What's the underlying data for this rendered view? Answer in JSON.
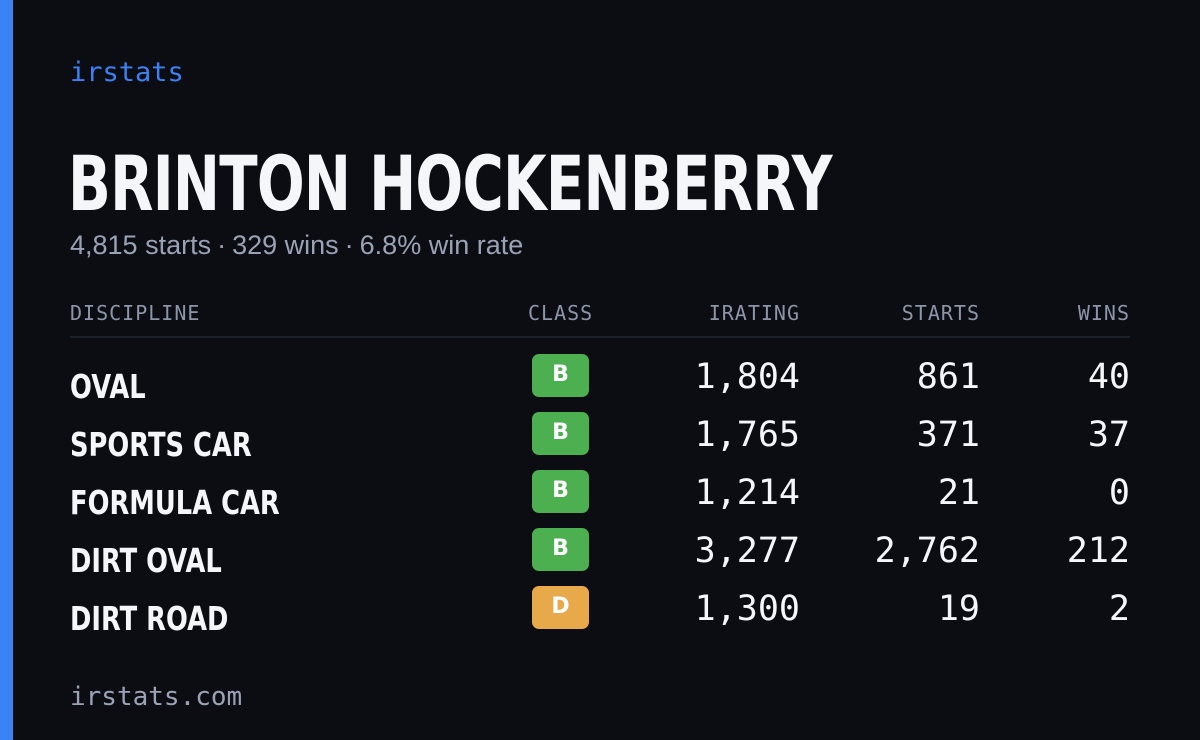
{
  "brand": "irstats",
  "driver": {
    "name": "BRINTON HOCKENBERRY",
    "starts_text": "4,815 starts",
    "wins_text": "329 wins",
    "win_rate_text": "6.8% win rate",
    "separator": "·"
  },
  "table": {
    "headers": {
      "discipline": "DISCIPLINE",
      "class": "CLASS",
      "irating": "IRATING",
      "starts": "STARTS",
      "wins": "WINS"
    },
    "rows": [
      {
        "discipline": "OVAL",
        "class": "B",
        "class_color": "#4caf50",
        "irating": "1,804",
        "starts": "861",
        "wins": "40"
      },
      {
        "discipline": "SPORTS CAR",
        "class": "B",
        "class_color": "#4caf50",
        "irating": "1,765",
        "starts": "371",
        "wins": "37"
      },
      {
        "discipline": "FORMULA CAR",
        "class": "B",
        "class_color": "#4caf50",
        "irating": "1,214",
        "starts": "21",
        "wins": "0"
      },
      {
        "discipline": "DIRT OVAL",
        "class": "B",
        "class_color": "#4caf50",
        "irating": "3,277",
        "starts": "2,762",
        "wins": "212"
      },
      {
        "discipline": "DIRT ROAD",
        "class": "D",
        "class_color": "#e8a94a",
        "irating": "1,300",
        "starts": "19",
        "wins": "2"
      }
    ]
  },
  "footer": "irstats.com",
  "colors": {
    "accent": "#3b82f6",
    "background": "#0b0d13",
    "class_b": "#4caf50",
    "class_d": "#e8a94a"
  }
}
